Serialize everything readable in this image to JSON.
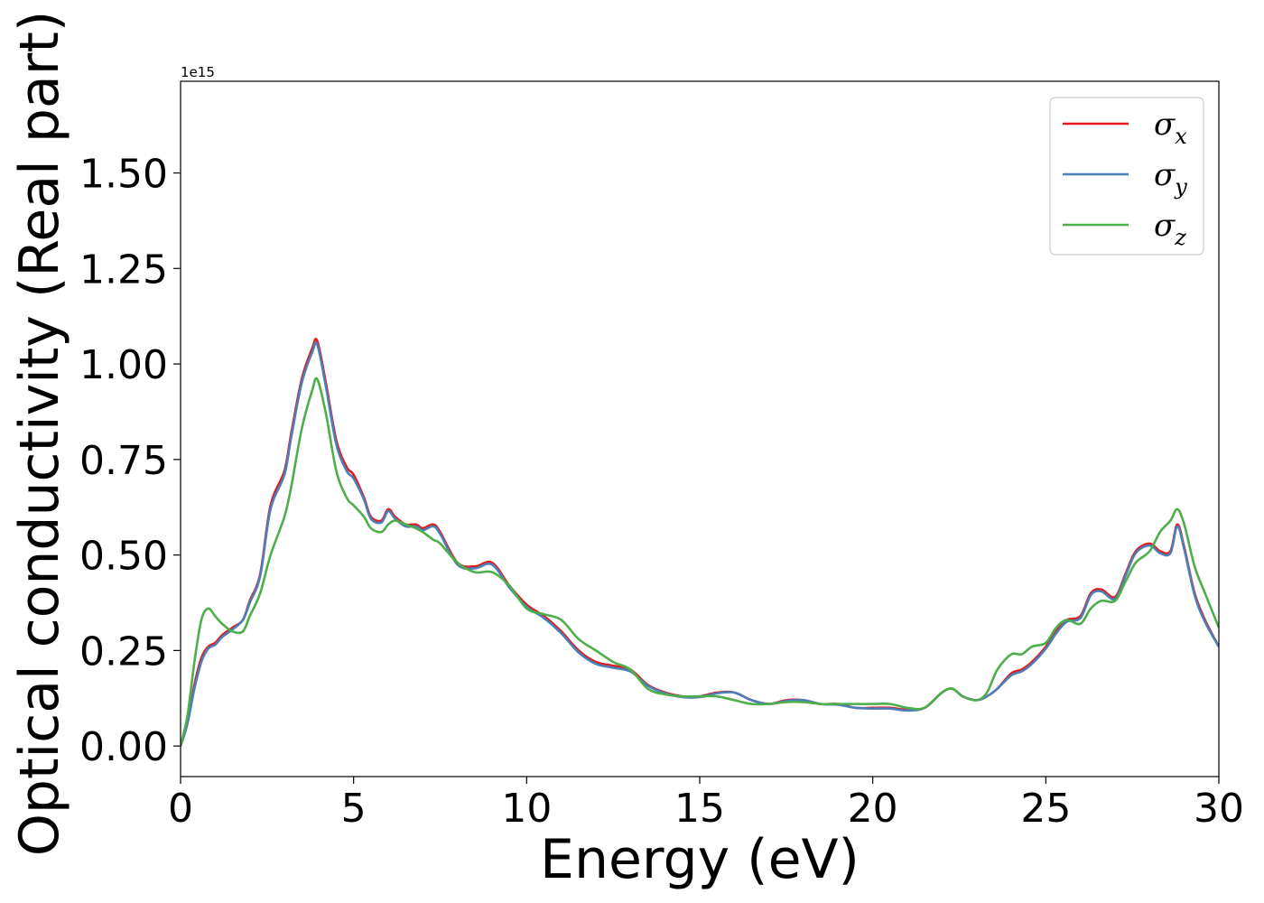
{
  "chart_data": {
    "type": "line",
    "title": "",
    "xlabel": "Energy (eV)",
    "ylabel": "Optical conductivity (Real part)",
    "y_offset_label": "1e15",
    "xlim": [
      0,
      30
    ],
    "ylim": [
      -0.08,
      1.74
    ],
    "x_ticks": [
      0,
      5,
      10,
      15,
      20,
      25,
      30
    ],
    "x_tick_labels": [
      "0",
      "5",
      "10",
      "15",
      "20",
      "25",
      "30"
    ],
    "y_ticks": [
      0,
      0.25,
      0.5,
      0.75,
      1.0,
      1.25,
      1.5
    ],
    "y_tick_labels": [
      "0.00",
      "0.25",
      "0.50",
      "0.75",
      "1.00",
      "1.25",
      "1.50"
    ],
    "grid": false,
    "legend_position": "upper-right",
    "series": [
      {
        "name": "σx",
        "legend_base": "σ",
        "legend_sub": "x",
        "color": "#e41a1c",
        "x": [
          0,
          0.2,
          0.4,
          0.6,
          0.8,
          1.0,
          1.2,
          1.5,
          1.8,
          2.0,
          2.3,
          2.6,
          3.0,
          3.2,
          3.5,
          3.8,
          3.95,
          4.2,
          4.5,
          4.8,
          5.0,
          5.3,
          5.5,
          5.8,
          6.0,
          6.2,
          6.5,
          6.8,
          7.0,
          7.3,
          7.5,
          8.0,
          8.5,
          9.0,
          9.5,
          10.0,
          10.5,
          11.0,
          11.5,
          12.0,
          12.5,
          13.0,
          13.5,
          14.0,
          14.5,
          15.0,
          15.5,
          16.0,
          16.5,
          17.0,
          17.5,
          18.0,
          18.5,
          19.0,
          19.5,
          20.0,
          20.5,
          21.0,
          21.5,
          22.0,
          22.3,
          22.6,
          23.0,
          23.3,
          23.6,
          24.0,
          24.3,
          24.6,
          25.0,
          25.3,
          25.6,
          26.0,
          26.3,
          26.6,
          27.0,
          27.3,
          27.6,
          28.0,
          28.3,
          28.6,
          28.8,
          29.0,
          29.3,
          29.6,
          30.0
        ],
        "values": [
          0.0,
          0.06,
          0.16,
          0.23,
          0.26,
          0.27,
          0.29,
          0.31,
          0.33,
          0.38,
          0.45,
          0.63,
          0.72,
          0.82,
          0.96,
          1.04,
          1.06,
          0.95,
          0.8,
          0.73,
          0.71,
          0.65,
          0.6,
          0.59,
          0.62,
          0.6,
          0.58,
          0.58,
          0.57,
          0.58,
          0.56,
          0.48,
          0.47,
          0.48,
          0.42,
          0.37,
          0.34,
          0.3,
          0.25,
          0.22,
          0.21,
          0.2,
          0.16,
          0.14,
          0.13,
          0.13,
          0.14,
          0.14,
          0.12,
          0.11,
          0.12,
          0.12,
          0.11,
          0.11,
          0.1,
          0.1,
          0.1,
          0.095,
          0.1,
          0.14,
          0.15,
          0.13,
          0.12,
          0.13,
          0.15,
          0.19,
          0.2,
          0.22,
          0.26,
          0.3,
          0.33,
          0.34,
          0.4,
          0.41,
          0.39,
          0.45,
          0.51,
          0.53,
          0.51,
          0.51,
          0.58,
          0.52,
          0.4,
          0.33,
          0.26
        ]
      },
      {
        "name": "σy",
        "legend_base": "σ",
        "legend_sub": "y",
        "color": "#4a7fba",
        "x": [
          0,
          0.2,
          0.4,
          0.6,
          0.8,
          1.0,
          1.2,
          1.5,
          1.8,
          2.0,
          2.3,
          2.6,
          3.0,
          3.2,
          3.5,
          3.8,
          3.95,
          4.2,
          4.5,
          4.8,
          5.0,
          5.3,
          5.5,
          5.8,
          6.0,
          6.2,
          6.5,
          6.8,
          7.0,
          7.3,
          7.5,
          8.0,
          8.5,
          9.0,
          9.5,
          10.0,
          10.5,
          11.0,
          11.5,
          12.0,
          12.5,
          13.0,
          13.5,
          14.0,
          14.5,
          15.0,
          15.5,
          16.0,
          16.5,
          17.0,
          17.5,
          18.0,
          18.5,
          19.0,
          19.5,
          20.0,
          20.5,
          21.0,
          21.5,
          22.0,
          22.3,
          22.6,
          23.0,
          23.3,
          23.6,
          24.0,
          24.3,
          24.6,
          25.0,
          25.3,
          25.6,
          26.0,
          26.3,
          26.6,
          27.0,
          27.3,
          27.6,
          28.0,
          28.3,
          28.6,
          28.8,
          29.0,
          29.3,
          29.6,
          30.0
        ],
        "values": [
          0.0,
          0.06,
          0.15,
          0.22,
          0.255,
          0.265,
          0.285,
          0.305,
          0.33,
          0.375,
          0.445,
          0.62,
          0.71,
          0.81,
          0.95,
          1.03,
          1.05,
          0.94,
          0.79,
          0.72,
          0.7,
          0.645,
          0.595,
          0.585,
          0.615,
          0.595,
          0.575,
          0.575,
          0.565,
          0.575,
          0.555,
          0.475,
          0.465,
          0.475,
          0.415,
          0.365,
          0.335,
          0.295,
          0.245,
          0.215,
          0.205,
          0.195,
          0.158,
          0.138,
          0.128,
          0.128,
          0.138,
          0.14,
          0.12,
          0.11,
          0.118,
          0.12,
          0.11,
          0.108,
          0.1,
          0.098,
          0.098,
          0.093,
          0.1,
          0.14,
          0.15,
          0.13,
          0.12,
          0.13,
          0.15,
          0.185,
          0.195,
          0.215,
          0.255,
          0.295,
          0.325,
          0.335,
          0.395,
          0.405,
          0.385,
          0.445,
          0.505,
          0.525,
          0.505,
          0.505,
          0.575,
          0.515,
          0.395,
          0.325,
          0.26
        ]
      },
      {
        "name": "σz",
        "legend_base": "σ",
        "legend_sub": "z",
        "color": "#4daf4a",
        "x": [
          0,
          0.2,
          0.4,
          0.6,
          0.8,
          1.0,
          1.2,
          1.5,
          1.8,
          2.0,
          2.3,
          2.6,
          3.0,
          3.2,
          3.5,
          3.8,
          3.95,
          4.2,
          4.5,
          4.8,
          5.0,
          5.3,
          5.5,
          5.8,
          6.0,
          6.2,
          6.5,
          6.8,
          7.0,
          7.3,
          7.5,
          8.0,
          8.5,
          9.0,
          9.5,
          10.0,
          10.5,
          11.0,
          11.5,
          12.0,
          12.5,
          13.0,
          13.5,
          14.0,
          14.5,
          15.0,
          15.5,
          16.0,
          16.5,
          17.0,
          17.5,
          18.0,
          18.5,
          19.0,
          19.5,
          20.0,
          20.5,
          21.0,
          21.5,
          22.0,
          22.3,
          22.6,
          23.0,
          23.3,
          23.6,
          24.0,
          24.3,
          24.6,
          25.0,
          25.3,
          25.6,
          26.0,
          26.3,
          26.6,
          27.0,
          27.3,
          27.6,
          28.0,
          28.3,
          28.6,
          28.8,
          29.0,
          29.3,
          29.6,
          30.0
        ],
        "values": [
          0.0,
          0.08,
          0.22,
          0.33,
          0.36,
          0.34,
          0.32,
          0.3,
          0.3,
          0.34,
          0.4,
          0.5,
          0.6,
          0.68,
          0.83,
          0.93,
          0.96,
          0.87,
          0.72,
          0.65,
          0.63,
          0.6,
          0.57,
          0.56,
          0.58,
          0.59,
          0.58,
          0.57,
          0.56,
          0.54,
          0.53,
          0.48,
          0.455,
          0.455,
          0.42,
          0.36,
          0.345,
          0.33,
          0.28,
          0.25,
          0.22,
          0.2,
          0.15,
          0.135,
          0.13,
          0.13,
          0.13,
          0.12,
          0.11,
          0.11,
          0.115,
          0.115,
          0.11,
          0.11,
          0.11,
          0.11,
          0.11,
          0.1,
          0.1,
          0.14,
          0.15,
          0.13,
          0.12,
          0.14,
          0.2,
          0.24,
          0.24,
          0.26,
          0.27,
          0.31,
          0.33,
          0.32,
          0.36,
          0.38,
          0.38,
          0.43,
          0.48,
          0.51,
          0.56,
          0.59,
          0.62,
          0.58,
          0.47,
          0.4,
          0.31
        ]
      }
    ]
  }
}
